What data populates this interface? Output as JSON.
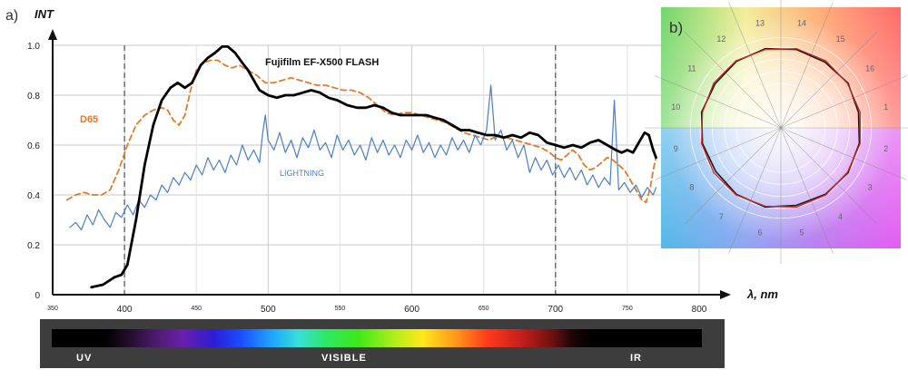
{
  "panel_a_label": "a)",
  "panel_b_label": "b)",
  "chart_data": [
    {
      "type": "line",
      "xlabel": "λ, nm",
      "ylabel": "INT",
      "xlim": [
        350,
        800
      ],
      "ylim": [
        0,
        1.0
      ],
      "grid": true,
      "x_ticks_major": [
        400,
        500,
        600,
        700,
        800
      ],
      "x_ticks_minor": [
        350,
        450,
        550,
        650,
        750
      ],
      "y_ticks": [
        "0",
        "0.2",
        "0.4",
        "0.6",
        "0.8",
        "1.0"
      ],
      "y_tick_values": [
        0,
        0.2,
        0.4,
        0.6,
        0.8,
        1.0
      ],
      "dashed_markers": [
        400,
        700
      ],
      "series": [
        {
          "name": "Fujifilm EF-X500 FLASH",
          "color": "#000000",
          "style": "solid",
          "points": [
            [
              377,
              0.03
            ],
            [
              385,
              0.04
            ],
            [
              393,
              0.07
            ],
            [
              398,
              0.08
            ],
            [
              402,
              0.12
            ],
            [
              408,
              0.3
            ],
            [
              414,
              0.52
            ],
            [
              420,
              0.68
            ],
            [
              426,
              0.78
            ],
            [
              432,
              0.83
            ],
            [
              437,
              0.85
            ],
            [
              442,
              0.83
            ],
            [
              447,
              0.85
            ],
            [
              453,
              0.92
            ],
            [
              458,
              0.95
            ],
            [
              463,
              0.97
            ],
            [
              468,
              0.995
            ],
            [
              472,
              0.995
            ],
            [
              477,
              0.97
            ],
            [
              482,
              0.93
            ],
            [
              486,
              0.9
            ],
            [
              490,
              0.86
            ],
            [
              494,
              0.82
            ],
            [
              500,
              0.8
            ],
            [
              506,
              0.79
            ],
            [
              512,
              0.8
            ],
            [
              518,
              0.8
            ],
            [
              524,
              0.81
            ],
            [
              530,
              0.82
            ],
            [
              536,
              0.81
            ],
            [
              542,
              0.79
            ],
            [
              548,
              0.78
            ],
            [
              555,
              0.76
            ],
            [
              562,
              0.75
            ],
            [
              568,
              0.75
            ],
            [
              574,
              0.76
            ],
            [
              580,
              0.75
            ],
            [
              586,
              0.73
            ],
            [
              592,
              0.72
            ],
            [
              598,
              0.72
            ],
            [
              604,
              0.72
            ],
            [
              610,
              0.72
            ],
            [
              616,
              0.71
            ],
            [
              622,
              0.7
            ],
            [
              628,
              0.68
            ],
            [
              634,
              0.66
            ],
            [
              640,
              0.66
            ],
            [
              646,
              0.65
            ],
            [
              652,
              0.64
            ],
            [
              658,
              0.64
            ],
            [
              664,
              0.63
            ],
            [
              670,
              0.64
            ],
            [
              676,
              0.63
            ],
            [
              682,
              0.65
            ],
            [
              688,
              0.64
            ],
            [
              694,
              0.61
            ],
            [
              700,
              0.6
            ],
            [
              706,
              0.59
            ],
            [
              712,
              0.6
            ],
            [
              718,
              0.59
            ],
            [
              724,
              0.61
            ],
            [
              730,
              0.62
            ],
            [
              736,
              0.6
            ],
            [
              742,
              0.58
            ],
            [
              746,
              0.57
            ],
            [
              750,
              0.58
            ],
            [
              754,
              0.57
            ],
            [
              758,
              0.61
            ],
            [
              762,
              0.65
            ],
            [
              765,
              0.64
            ],
            [
              768,
              0.58
            ],
            [
              770,
              0.55
            ]
          ]
        },
        {
          "name": "D65",
          "color": "#e07b2a",
          "style": "dashed",
          "points": [
            [
              360,
              0.38
            ],
            [
              366,
              0.4
            ],
            [
              372,
              0.41
            ],
            [
              378,
              0.4
            ],
            [
              384,
              0.4
            ],
            [
              390,
              0.42
            ],
            [
              396,
              0.5
            ],
            [
              402,
              0.6
            ],
            [
              408,
              0.68
            ],
            [
              414,
              0.72
            ],
            [
              420,
              0.74
            ],
            [
              426,
              0.75
            ],
            [
              430,
              0.74
            ],
            [
              434,
              0.7
            ],
            [
              438,
              0.68
            ],
            [
              442,
              0.72
            ],
            [
              446,
              0.82
            ],
            [
              450,
              0.9
            ],
            [
              455,
              0.93
            ],
            [
              460,
              0.94
            ],
            [
              465,
              0.94
            ],
            [
              470,
              0.92
            ],
            [
              475,
              0.91
            ],
            [
              480,
              0.92
            ],
            [
              486,
              0.9
            ],
            [
              492,
              0.88
            ],
            [
              498,
              0.85
            ],
            [
              504,
              0.85
            ],
            [
              510,
              0.86
            ],
            [
              516,
              0.87
            ],
            [
              522,
              0.86
            ],
            [
              528,
              0.85
            ],
            [
              534,
              0.84
            ],
            [
              540,
              0.84
            ],
            [
              546,
              0.83
            ],
            [
              552,
              0.82
            ],
            [
              558,
              0.82
            ],
            [
              564,
              0.81
            ],
            [
              570,
              0.79
            ],
            [
              576,
              0.76
            ],
            [
              582,
              0.73
            ],
            [
              588,
              0.72
            ],
            [
              594,
              0.73
            ],
            [
              600,
              0.73
            ],
            [
              606,
              0.72
            ],
            [
              612,
              0.71
            ],
            [
              618,
              0.7
            ],
            [
              624,
              0.69
            ],
            [
              630,
              0.67
            ],
            [
              636,
              0.65
            ],
            [
              642,
              0.64
            ],
            [
              648,
              0.63
            ],
            [
              654,
              0.62
            ],
            [
              660,
              0.64
            ],
            [
              666,
              0.63
            ],
            [
              672,
              0.62
            ],
            [
              678,
              0.61
            ],
            [
              684,
              0.6
            ],
            [
              690,
              0.59
            ],
            [
              696,
              0.57
            ],
            [
              700,
              0.55
            ],
            [
              704,
              0.54
            ],
            [
              708,
              0.56
            ],
            [
              712,
              0.58
            ],
            [
              716,
              0.56
            ],
            [
              720,
              0.52
            ],
            [
              724,
              0.5
            ],
            [
              728,
              0.51
            ],
            [
              732,
              0.53
            ],
            [
              736,
              0.55
            ],
            [
              740,
              0.54
            ],
            [
              744,
              0.52
            ],
            [
              748,
              0.5
            ],
            [
              752,
              0.46
            ],
            [
              756,
              0.42
            ],
            [
              760,
              0.38
            ],
            [
              763,
              0.37
            ],
            [
              766,
              0.43
            ],
            [
              768,
              0.5
            ],
            [
              770,
              0.55
            ]
          ]
        },
        {
          "name": "LIGHTNING",
          "color": "#4a7fc1",
          "style": "solid",
          "points": [
            [
              362,
              0.27
            ],
            [
              366,
              0.29
            ],
            [
              370,
              0.26
            ],
            [
              374,
              0.32
            ],
            [
              378,
              0.28
            ],
            [
              382,
              0.34
            ],
            [
              386,
              0.3
            ],
            [
              390,
              0.27
            ],
            [
              394,
              0.33
            ],
            [
              398,
              0.31
            ],
            [
              402,
              0.36
            ],
            [
              406,
              0.32
            ],
            [
              410,
              0.38
            ],
            [
              414,
              0.35
            ],
            [
              418,
              0.4
            ],
            [
              422,
              0.38
            ],
            [
              426,
              0.44
            ],
            [
              430,
              0.41
            ],
            [
              434,
              0.47
            ],
            [
              438,
              0.44
            ],
            [
              442,
              0.49
            ],
            [
              446,
              0.46
            ],
            [
              450,
              0.52
            ],
            [
              454,
              0.48
            ],
            [
              458,
              0.55
            ],
            [
              462,
              0.5
            ],
            [
              466,
              0.54
            ],
            [
              470,
              0.49
            ],
            [
              474,
              0.56
            ],
            [
              478,
              0.52
            ],
            [
              482,
              0.6
            ],
            [
              486,
              0.54
            ],
            [
              490,
              0.58
            ],
            [
              494,
              0.53
            ],
            [
              496,
              0.64
            ],
            [
              498,
              0.72
            ],
            [
              500,
              0.62
            ],
            [
              504,
              0.58
            ],
            [
              508,
              0.65
            ],
            [
              512,
              0.57
            ],
            [
              516,
              0.62
            ],
            [
              520,
              0.55
            ],
            [
              524,
              0.63
            ],
            [
              528,
              0.59
            ],
            [
              532,
              0.66
            ],
            [
              536,
              0.58
            ],
            [
              540,
              0.61
            ],
            [
              544,
              0.55
            ],
            [
              548,
              0.64
            ],
            [
              552,
              0.58
            ],
            [
              556,
              0.62
            ],
            [
              560,
              0.56
            ],
            [
              564,
              0.6
            ],
            [
              568,
              0.54
            ],
            [
              572,
              0.63
            ],
            [
              576,
              0.57
            ],
            [
              580,
              0.62
            ],
            [
              584,
              0.56
            ],
            [
              588,
              0.6
            ],
            [
              592,
              0.55
            ],
            [
              596,
              0.62
            ],
            [
              600,
              0.58
            ],
            [
              604,
              0.64
            ],
            [
              608,
              0.57
            ],
            [
              612,
              0.61
            ],
            [
              616,
              0.55
            ],
            [
              620,
              0.6
            ],
            [
              624,
              0.56
            ],
            [
              628,
              0.63
            ],
            [
              632,
              0.58
            ],
            [
              636,
              0.62
            ],
            [
              640,
              0.57
            ],
            [
              644,
              0.64
            ],
            [
              648,
              0.6
            ],
            [
              652,
              0.66
            ],
            [
              655,
              0.84
            ],
            [
              658,
              0.62
            ],
            [
              662,
              0.66
            ],
            [
              666,
              0.58
            ],
            [
              670,
              0.62
            ],
            [
              674,
              0.55
            ],
            [
              678,
              0.6
            ],
            [
              682,
              0.49
            ],
            [
              686,
              0.55
            ],
            [
              690,
              0.5
            ],
            [
              694,
              0.54
            ],
            [
              698,
              0.48
            ],
            [
              702,
              0.52
            ],
            [
              706,
              0.47
            ],
            [
              710,
              0.51
            ],
            [
              714,
              0.46
            ],
            [
              718,
              0.5
            ],
            [
              722,
              0.44
            ],
            [
              726,
              0.48
            ],
            [
              730,
              0.43
            ],
            [
              734,
              0.47
            ],
            [
              738,
              0.44
            ],
            [
              741,
              0.78
            ],
            [
              744,
              0.42
            ],
            [
              748,
              0.45
            ],
            [
              752,
              0.41
            ],
            [
              756,
              0.44
            ],
            [
              760,
              0.39
            ],
            [
              764,
              0.43
            ],
            [
              768,
              0.4
            ],
            [
              770,
              0.43
            ]
          ]
        }
      ]
    },
    {
      "type": "radar",
      "categories": [
        "1",
        "2",
        "3",
        "4",
        "5",
        "6",
        "7",
        "8",
        "9",
        "10",
        "11",
        "12",
        "13",
        "14",
        "15",
        "16"
      ],
      "series": [
        {
          "name": "",
          "color": "#1a1a1a",
          "values": [
            0.98,
            0.99,
            1.0,
            0.99,
            0.98,
            1.0,
            0.99,
            0.97,
            0.99,
            1.0,
            0.98,
            0.99,
            1.0,
            0.99,
            0.98,
            1.0
          ]
        },
        {
          "name": "",
          "color": "#d0281f",
          "values": [
            1.0,
            1.0,
            0.99,
            1.0,
            1.0,
            0.99,
            1.0,
            1.0,
            1.0,
            0.99,
            1.0,
            1.0,
            0.99,
            1.0,
            1.0,
            0.99
          ]
        }
      ]
    }
  ],
  "spectrum_strip": {
    "labels": {
      "uv": "UV",
      "visible": "VISIBLE",
      "ir": "IR"
    }
  }
}
